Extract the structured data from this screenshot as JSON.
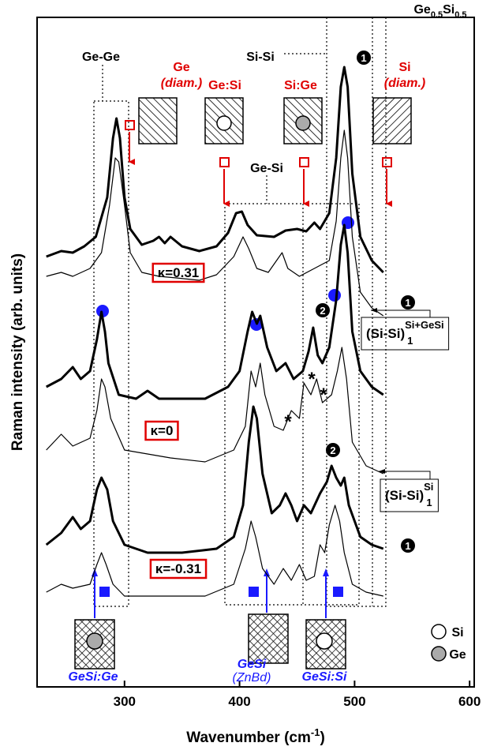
{
  "chart_data": {
    "type": "line",
    "title": [
      "Ge",
      "0.5",
      "Si",
      "0.5"
    ],
    "x_label": [
      "Wavenumber (cm",
      "-1",
      ")"
    ],
    "y_label": "Raman intensity (arb. units)",
    "xlim": [
      224,
      604
    ],
    "ylim": [
      0,
      848
    ],
    "xticks": [
      300,
      400,
      500,
      600
    ],
    "series": [
      {
        "color": "#000000",
        "width": 3,
        "x": [
          232,
          245,
          255,
          265,
          275,
          285,
          290,
          293,
          296,
          300,
          305,
          315,
          325,
          330,
          335,
          340,
          350,
          365,
          380,
          390,
          397,
          402,
          407,
          415,
          430,
          440,
          450,
          458,
          465,
          470,
          478,
          484,
          488,
          491,
          494,
          498,
          505,
          515,
          525
        ],
        "values": [
          545,
          552,
          550,
          558,
          570,
          620,
          695,
          720,
          695,
          620,
          580,
          560,
          565,
          570,
          562,
          570,
          558,
          552,
          558,
          575,
          600,
          602,
          585,
          572,
          570,
          578,
          580,
          577,
          588,
          580,
          600,
          670,
          760,
          785,
          760,
          650,
          570,
          540,
          525
        ]
      },
      {
        "color": "#000000",
        "width": 1.2,
        "x": [
          232,
          245,
          255,
          270,
          280,
          287,
          292,
          295,
          300,
          305,
          315,
          330,
          345,
          365,
          380,
          395,
          403,
          408,
          415,
          425,
          437,
          442,
          452,
          465,
          478,
          484,
          488,
          491,
          494,
          498,
          505,
          515,
          525
        ],
        "values": [
          520,
          525,
          520,
          530,
          550,
          610,
          670,
          665,
          610,
          550,
          525,
          520,
          518,
          515,
          522,
          545,
          570,
          555,
          530,
          525,
          550,
          530,
          520,
          530,
          540,
          590,
          670,
          705,
          670,
          570,
          500,
          480,
          470
        ]
      },
      {
        "color": "#000000",
        "width": 3,
        "x": [
          232,
          245,
          255,
          262,
          270,
          276,
          280,
          283,
          286,
          295,
          310,
          320,
          330,
          350,
          370,
          390,
          400,
          407,
          411,
          415,
          418,
          424,
          432,
          440,
          447,
          455,
          460,
          464,
          468,
          472,
          478,
          484,
          488,
          491,
          494,
          498,
          505,
          515,
          525
        ],
        "values": [
          380,
          390,
          405,
          390,
          400,
          440,
          475,
          450,
          410,
          370,
          365,
          375,
          365,
          365,
          365,
          380,
          400,
          450,
          475,
          460,
          470,
          430,
          400,
          410,
          390,
          400,
          425,
          455,
          420,
          410,
          430,
          490,
          560,
          585,
          550,
          450,
          400,
          380,
          370
        ]
      },
      {
        "color": "#000000",
        "width": 1.2,
        "x": [
          232,
          245,
          255,
          270,
          276,
          280,
          283,
          288,
          300,
          320,
          340,
          370,
          395,
          405,
          410,
          414,
          418,
          422,
          430,
          438,
          445,
          452,
          456,
          462,
          467,
          472,
          480,
          485,
          489,
          493,
          498,
          510,
          525
        ],
        "values": [
          300,
          320,
          305,
          315,
          350,
          390,
          380,
          340,
          300,
          295,
          290,
          285,
          300,
          330,
          400,
          380,
          410,
          370,
          330,
          325,
          350,
          340,
          385,
          370,
          390,
          360,
          370,
          400,
          430,
          390,
          310,
          280,
          270
        ]
      },
      {
        "color": "#000000",
        "width": 3,
        "x": [
          232,
          245,
          255,
          262,
          270,
          276,
          280,
          285,
          290,
          300,
          320,
          350,
          380,
          395,
          403,
          408,
          412,
          415,
          420,
          428,
          435,
          440,
          445,
          450,
          456,
          462,
          470,
          476,
          480,
          484,
          488,
          491,
          495,
          505,
          515,
          525
        ],
        "values": [
          180,
          195,
          215,
          200,
          210,
          250,
          265,
          250,
          210,
          180,
          170,
          170,
          175,
          190,
          230,
          310,
          355,
          340,
          270,
          220,
          230,
          245,
          230,
          210,
          230,
          220,
          245,
          260,
          280,
          265,
          255,
          265,
          230,
          190,
          180,
          175
        ]
      },
      {
        "color": "#000000",
        "width": 1.2,
        "x": [
          232,
          245,
          255,
          270,
          276,
          280,
          284,
          290,
          300,
          330,
          370,
          395,
          405,
          410,
          414,
          420,
          430,
          438,
          445,
          452,
          458,
          465,
          470,
          474,
          478,
          483,
          487,
          491,
          498,
          510,
          525
        ],
        "values": [
          120,
          130,
          125,
          130,
          155,
          170,
          155,
          130,
          115,
          115,
          115,
          130,
          175,
          210,
          190,
          150,
          130,
          150,
          135,
          155,
          135,
          140,
          180,
          170,
          205,
          230,
          210,
          170,
          130,
          120,
          115
        ]
      }
    ],
    "annotations": [
      {
        "text": "Ge-Ge",
        "color": "#000000"
      },
      {
        "text": "Si-Si",
        "color": "#000000"
      },
      {
        "text": "Ge",
        "color": "#e00000"
      },
      {
        "text": "(diam.)",
        "color": "#e00000",
        "style": "italic"
      },
      {
        "text": "Ge:Si",
        "color": "#e00000"
      },
      {
        "text": "Si:Ge",
        "color": "#e00000"
      },
      {
        "text": "Si",
        "color": "#e00000"
      },
      {
        "text": "(diam.)",
        "color": "#e00000",
        "style": "italic"
      },
      {
        "text": "Ge-Si",
        "color": "#000000"
      },
      {
        "text": "GeSi:Ge",
        "color": "#1a1aff",
        "style": "italic"
      },
      {
        "text": "GeSi",
        "color": "#1a1aff",
        "style": "italic"
      },
      {
        "text": "(ZnBd)",
        "color": "#1a1aff",
        "style": "italic"
      },
      {
        "text": "GeSi:Si",
        "color": "#1a1aff",
        "style": "italic"
      },
      {
        "text": "Si",
        "color": "#000000"
      },
      {
        "text": "Ge",
        "color": "#000000"
      },
      {
        "text": "*",
        "color": "#000000"
      },
      {
        "text": "*",
        "color": "#000000"
      },
      {
        "text": "*",
        "color": "#000000"
      }
    ],
    "kappa_labels": [
      "κ=0.31",
      "κ=0",
      "κ=-0.31"
    ],
    "badges": [
      "1",
      "1",
      "2",
      "2",
      "1"
    ],
    "callouts": [
      [
        "(Si-Si)",
        "Si+GeSi",
        "1"
      ],
      [
        "(Si-Si)",
        "Si",
        "1"
      ]
    ]
  }
}
